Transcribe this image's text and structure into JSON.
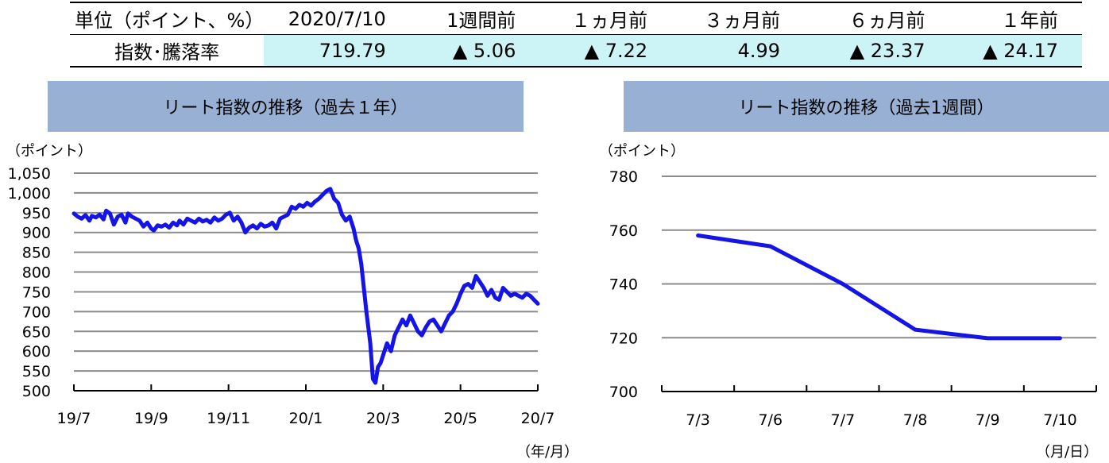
{
  "table": {
    "headers": [
      "単位（ポイント、%）",
      "2020/7/10",
      "1週間前",
      "１ヵ月前",
      "３ヵ月前",
      "６ヵ月前",
      "１年前"
    ],
    "row_label": "指数･騰落率",
    "values": [
      "719.79",
      "▲ 5.06",
      "▲ 7.22",
      "4.99",
      "▲ 23.37",
      "▲ 24.17"
    ]
  },
  "chart_data": [
    {
      "type": "line",
      "title": "リート指数の推移（過去１年）",
      "ylabel": "（ポイント）",
      "xlabel": "（年/月）",
      "ylim": [
        500,
        1050
      ],
      "yticks": [
        "500",
        "550",
        "600",
        "650",
        "700",
        "750",
        "800",
        "850",
        "900",
        "950",
        "1,000",
        "1,050"
      ],
      "xticks": [
        "19/7",
        "19/9",
        "19/11",
        "20/1",
        "20/3",
        "20/5",
        "20/7"
      ],
      "grid": true,
      "color": "#1414e6",
      "x_index": [
        0,
        3,
        6,
        9,
        12,
        14,
        17,
        20,
        23,
        25,
        28,
        31,
        34,
        37,
        40,
        42,
        45,
        48,
        51,
        54,
        57,
        60,
        62,
        65,
        68,
        71,
        74,
        77,
        80,
        82,
        85,
        88,
        91,
        94,
        97,
        100,
        103,
        106,
        109,
        112,
        115,
        118,
        121,
        124,
        127,
        130,
        133,
        136,
        139,
        142,
        145,
        148,
        151,
        154,
        157,
        160,
        163,
        166,
        169,
        172,
        175,
        178,
        181,
        184,
        187,
        190,
        193,
        196,
        199,
        202,
        205,
        208,
        211,
        214,
        217,
        219,
        221,
        223,
        225,
        227,
        230,
        232,
        234,
        236,
        238,
        240,
        243,
        246,
        249,
        252,
        255,
        258,
        261,
        264,
        267,
        270,
        273,
        276,
        279,
        282,
        285,
        288,
        291,
        294,
        297,
        300,
        303,
        306,
        309,
        312,
        315,
        318,
        321,
        324,
        327,
        330,
        333,
        336,
        339,
        342,
        345,
        348,
        351,
        354,
        357,
        360
      ],
      "values": [
        948,
        940,
        935,
        944,
        930,
        942,
        938,
        945,
        933,
        955,
        948,
        920,
        940,
        945,
        925,
        948,
        940,
        935,
        930,
        915,
        925,
        910,
        905,
        918,
        915,
        920,
        912,
        925,
        918,
        930,
        920,
        935,
        930,
        925,
        935,
        928,
        932,
        925,
        938,
        930,
        935,
        945,
        950,
        930,
        940,
        925,
        900,
        912,
        918,
        910,
        922,
        915,
        918,
        925,
        910,
        935,
        940,
        945,
        965,
        960,
        970,
        965,
        975,
        968,
        978,
        985,
        995,
        1005,
        1010,
        985,
        975,
        945,
        930,
        940,
        910,
        880,
        860,
        820,
        760,
        700,
        620,
        530,
        520,
        560,
        570,
        590,
        620,
        600,
        640,
        660,
        680,
        665,
        690,
        670,
        650,
        640,
        660,
        675,
        680,
        665,
        650,
        670,
        690,
        700,
        720,
        745,
        765,
        770,
        760,
        790,
        775,
        760,
        740,
        755,
        735,
        730,
        760,
        750,
        740,
        745,
        740,
        735,
        745,
        740,
        730,
        720
      ]
    },
    {
      "type": "line",
      "title": "リート指数の推移（過去1週間）",
      "ylabel": "（ポイント）",
      "xlabel": "（月/日）",
      "categories": [
        "7/3",
        "7/6",
        "7/7",
        "7/8",
        "7/9",
        "7/10"
      ],
      "values": [
        758,
        754,
        740,
        723,
        719.8,
        719.8
      ],
      "ylim": [
        700,
        780
      ],
      "yticks": [
        "700",
        "720",
        "740",
        "760",
        "780"
      ],
      "grid": true,
      "color": "#1414e6"
    }
  ]
}
